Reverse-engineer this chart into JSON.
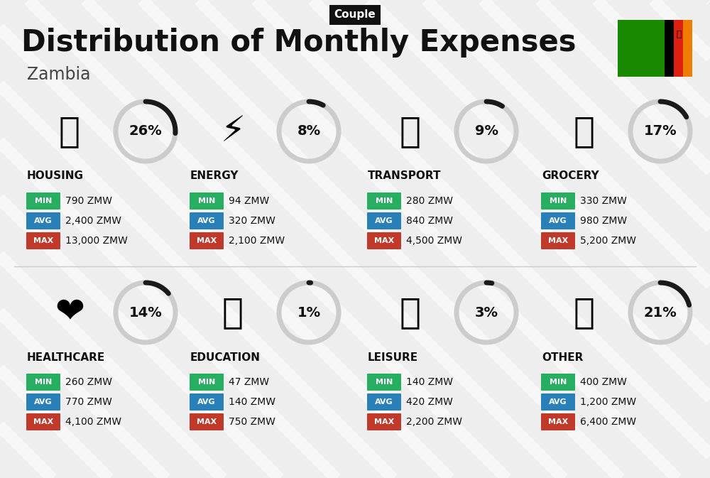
{
  "title": "Distribution of Monthly Expenses",
  "subtitle": "Zambia",
  "tag": "Couple",
  "bg_color": "#eeeeee",
  "categories": [
    {
      "name": "HOUSING",
      "pct": 26,
      "emoji": "🏗",
      "min": "790 ZMW",
      "avg": "2,400 ZMW",
      "max": "13,000 ZMW",
      "row": 0,
      "col": 0
    },
    {
      "name": "ENERGY",
      "pct": 8,
      "emoji": "⚡",
      "min": "94 ZMW",
      "avg": "320 ZMW",
      "max": "2,100 ZMW",
      "row": 0,
      "col": 1
    },
    {
      "name": "TRANSPORT",
      "pct": 9,
      "emoji": "🚌",
      "min": "280 ZMW",
      "avg": "840 ZMW",
      "max": "4,500 ZMW",
      "row": 0,
      "col": 2
    },
    {
      "name": "GROCERY",
      "pct": 17,
      "emoji": "🛍",
      "min": "330 ZMW",
      "avg": "980 ZMW",
      "max": "5,200 ZMW",
      "row": 0,
      "col": 3
    },
    {
      "name": "HEALTHCARE",
      "pct": 14,
      "emoji": "❤",
      "min": "260 ZMW",
      "avg": "770 ZMW",
      "max": "4,100 ZMW",
      "row": 1,
      "col": 0
    },
    {
      "name": "EDUCATION",
      "pct": 1,
      "emoji": "🎓",
      "min": "47 ZMW",
      "avg": "140 ZMW",
      "max": "750 ZMW",
      "row": 1,
      "col": 1
    },
    {
      "name": "LEISURE",
      "pct": 3,
      "emoji": "🛍",
      "min": "140 ZMW",
      "avg": "420 ZMW",
      "max": "2,200 ZMW",
      "row": 1,
      "col": 2
    },
    {
      "name": "OTHER",
      "pct": 21,
      "emoji": "👜",
      "min": "400 ZMW",
      "avg": "1,200 ZMW",
      "max": "6,400 ZMW",
      "row": 1,
      "col": 3
    }
  ],
  "color_min": "#27ae60",
  "color_avg": "#2980b9",
  "color_max": "#c0392b",
  "arc_dark": "#1a1a1a",
  "arc_light": "#cccccc"
}
